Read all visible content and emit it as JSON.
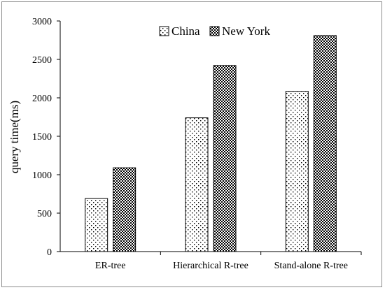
{
  "chart_data": {
    "type": "bar",
    "categories": [
      "ER-tree",
      "Hierarchical R-tree",
      "Stand-alone R-tree"
    ],
    "series": [
      {
        "name": "China",
        "values": [
          690,
          1740,
          2085
        ],
        "pattern": "dots"
      },
      {
        "name": "New York",
        "values": [
          1090,
          2420,
          2810
        ],
        "pattern": "checker"
      }
    ],
    "title": "",
    "xlabel": "",
    "ylabel": "query time(ms)",
    "ylim": [
      0,
      3000
    ],
    "yticks": [
      0,
      500,
      1000,
      1500,
      2000,
      2500,
      3000
    ],
    "grid": false,
    "legend_position": "top-center",
    "colors": {
      "fill": "#000000",
      "background": "#ffffff",
      "axis": "#000000"
    }
  }
}
